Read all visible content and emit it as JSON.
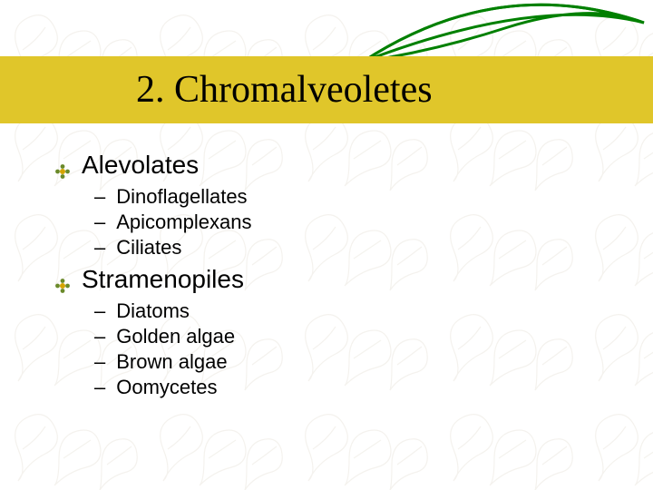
{
  "colors": {
    "title_band_bg": "#e0c62a",
    "swoosh_stroke": "#008000",
    "bullet_center": "#d4a400",
    "bullet_petal": "#6a8a2a",
    "pattern_stroke": "#d8d0c0",
    "pattern_opacity": 0.28,
    "text": "#000000",
    "bg": "#ffffff"
  },
  "title": "2. Chromalveoletes",
  "title_fontsize": 42,
  "l1_fontsize": 28,
  "l2_fontsize": 22,
  "sections": [
    {
      "label": "Alevolates",
      "items": [
        {
          "label": "Dinoflagellates"
        },
        {
          "label": "Apicomplexans"
        },
        {
          "label": "Ciliates"
        }
      ]
    },
    {
      "label": "Stramenopiles",
      "items": [
        {
          "label": "Diatoms"
        },
        {
          "label": "Golden algae"
        },
        {
          "label": "Brown algae"
        },
        {
          "label": "Oomycetes"
        }
      ]
    }
  ],
  "l2_bullet_glyph": "–"
}
